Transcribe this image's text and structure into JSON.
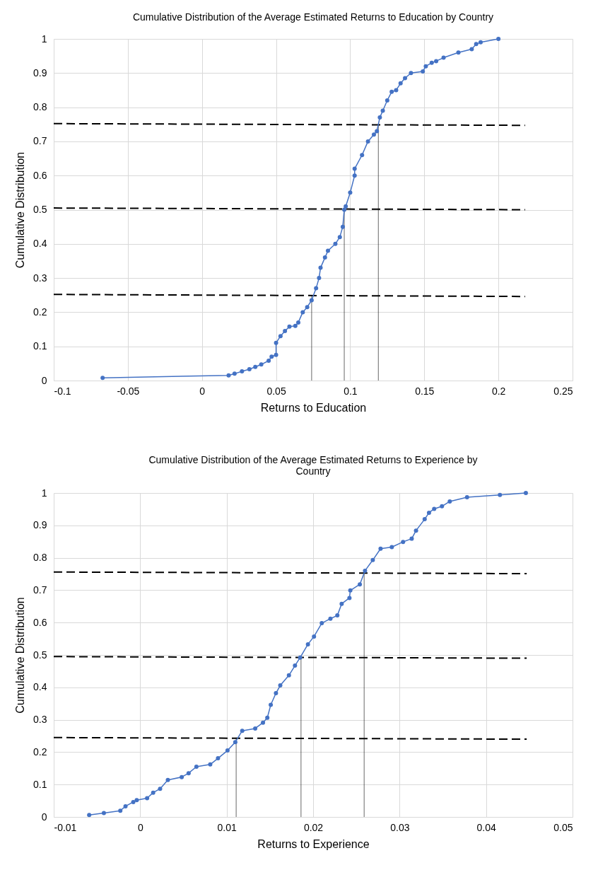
{
  "chart_data": [
    {
      "type": "line",
      "title": "Cumulative Distribution of the Average Estimated Returns to Education by Country",
      "xlabel": "Returns to Education",
      "ylabel": "Cumulative Distribution",
      "xlim": [
        -0.1,
        0.25
      ],
      "xticks": [
        -0.1,
        -0.05,
        0,
        0.05,
        0.1,
        0.15,
        0.2,
        0.25
      ],
      "ylim": [
        0,
        1
      ],
      "yticks": [
        0,
        0.1,
        0.2,
        0.3,
        0.4,
        0.5,
        0.6,
        0.7,
        0.8,
        0.9,
        1
      ],
      "grid": true,
      "series": [
        {
          "color": "#4472c4",
          "marker": "circle",
          "line_style": "solid",
          "x": [
            -0.067,
            0.018,
            0.022,
            0.027,
            0.032,
            0.036,
            0.04,
            0.045,
            0.047,
            0.05,
            0.05,
            0.053,
            0.056,
            0.059,
            0.063,
            0.065,
            0.068,
            0.071,
            0.074,
            0.077,
            0.079,
            0.08,
            0.083,
            0.085,
            0.09,
            0.093,
            0.095,
            0.096,
            0.097,
            0.1,
            0.103,
            0.103,
            0.108,
            0.112,
            0.116,
            0.118,
            0.12,
            0.122,
            0.125,
            0.128,
            0.131,
            0.134,
            0.137,
            0.141,
            0.149,
            0.151,
            0.155,
            0.158,
            0.163,
            0.173,
            0.182,
            0.185,
            0.188,
            0.2
          ],
          "values": [
            0.008,
            0.015,
            0.02,
            0.027,
            0.033,
            0.04,
            0.047,
            0.058,
            0.07,
            0.075,
            0.11,
            0.13,
            0.145,
            0.158,
            0.16,
            0.17,
            0.2,
            0.215,
            0.235,
            0.27,
            0.3,
            0.33,
            0.36,
            0.38,
            0.4,
            0.42,
            0.45,
            0.5,
            0.51,
            0.55,
            0.6,
            0.62,
            0.66,
            0.7,
            0.72,
            0.73,
            0.77,
            0.79,
            0.82,
            0.845,
            0.85,
            0.87,
            0.885,
            0.9,
            0.905,
            0.92,
            0.93,
            0.935,
            0.945,
            0.96,
            0.97,
            0.985,
            0.99,
            1
          ]
        },
        {
          "color": "#000000",
          "marker": "none",
          "line_style": "dashed",
          "x": [
            -0.1,
            0.218
          ],
          "values": [
            0.752,
            0.747
          ]
        },
        {
          "color": "#000000",
          "marker": "none",
          "line_style": "dashed",
          "x": [
            -0.1,
            0.218
          ],
          "values": [
            0.505,
            0.5
          ]
        },
        {
          "color": "#000000",
          "marker": "none",
          "line_style": "dashed",
          "x": [
            -0.1,
            0.218
          ],
          "values": [
            0.252,
            0.246
          ]
        },
        {
          "color": "#000000",
          "marker": "none",
          "line_style": "solid",
          "x": [
            0.074,
            0.074
          ],
          "values": [
            0,
            0.25
          ]
        },
        {
          "color": "#000000",
          "marker": "none",
          "line_style": "solid",
          "x": [
            0.096,
            0.096
          ],
          "values": [
            0,
            0.5
          ]
        },
        {
          "color": "#000000",
          "marker": "none",
          "line_style": "solid",
          "x": [
            0.119,
            0.119
          ],
          "values": [
            0,
            0.75
          ]
        }
      ]
    },
    {
      "type": "line",
      "title": "Cumulative Distribution of the Average Estimated Returns to Experience by Country",
      "xlabel": "Returns to Experience",
      "ylabel": "Cumulative Distribution",
      "xlim": [
        -0.01,
        0.05
      ],
      "xticks": [
        -0.01,
        0,
        0.01,
        0.02,
        0.03,
        0.04,
        0.05
      ],
      "ylim": [
        0,
        1
      ],
      "yticks": [
        0,
        0.1,
        0.2,
        0.3,
        0.4,
        0.5,
        0.6,
        0.7,
        0.8,
        0.9,
        1
      ],
      "grid": true,
      "series": [
        {
          "color": "#4472c4",
          "marker": "circle",
          "line_style": "solid",
          "x": [
            -0.0059,
            -0.0042,
            -0.0023,
            -0.0017,
            -0.0008,
            -0.0004,
            0.0008,
            0.0015,
            0.0023,
            0.0032,
            0.0048,
            0.0056,
            0.0065,
            0.0081,
            0.009,
            0.0101,
            0.011,
            0.0118,
            0.0133,
            0.0142,
            0.0147,
            0.0151,
            0.0157,
            0.0162,
            0.0172,
            0.0179,
            0.0185,
            0.0194,
            0.0201,
            0.021,
            0.022,
            0.0228,
            0.0233,
            0.0242,
            0.0243,
            0.0254,
            0.026,
            0.0269,
            0.0278,
            0.0291,
            0.0304,
            0.0314,
            0.0319,
            0.0329,
            0.0334,
            0.034,
            0.0349,
            0.0358,
            0.0378,
            0.0416,
            0.0446
          ],
          "values": [
            0.006,
            0.012,
            0.019,
            0.033,
            0.046,
            0.052,
            0.058,
            0.075,
            0.087,
            0.114,
            0.123,
            0.135,
            0.155,
            0.162,
            0.181,
            0.205,
            0.231,
            0.266,
            0.273,
            0.291,
            0.306,
            0.346,
            0.382,
            0.406,
            0.437,
            0.467,
            0.492,
            0.533,
            0.557,
            0.598,
            0.612,
            0.622,
            0.658,
            0.676,
            0.699,
            0.718,
            0.76,
            0.793,
            0.828,
            0.833,
            0.849,
            0.859,
            0.884,
            0.919,
            0.939,
            0.951,
            0.959,
            0.974,
            0.987,
            0.994,
            1
          ]
        },
        {
          "color": "#000000",
          "marker": "none",
          "line_style": "dashed",
          "x": [
            -0.01,
            0.0447
          ],
          "values": [
            0.756,
            0.751
          ]
        },
        {
          "color": "#000000",
          "marker": "none",
          "line_style": "dashed",
          "x": [
            -0.01,
            0.0447
          ],
          "values": [
            0.495,
            0.49
          ]
        },
        {
          "color": "#000000",
          "marker": "none",
          "line_style": "dashed",
          "x": [
            -0.01,
            0.0447
          ],
          "values": [
            0.245,
            0.24
          ]
        },
        {
          "color": "#000000",
          "marker": "none",
          "line_style": "solid",
          "x": [
            0.0111,
            0.0111
          ],
          "values": [
            0,
            0.245
          ]
        },
        {
          "color": "#000000",
          "marker": "none",
          "line_style": "solid",
          "x": [
            0.0186,
            0.0186
          ],
          "values": [
            0,
            0.494
          ]
        },
        {
          "color": "#000000",
          "marker": "none",
          "line_style": "solid",
          "x": [
            0.0259,
            0.0259
          ],
          "values": [
            0,
            0.756
          ]
        }
      ]
    }
  ]
}
